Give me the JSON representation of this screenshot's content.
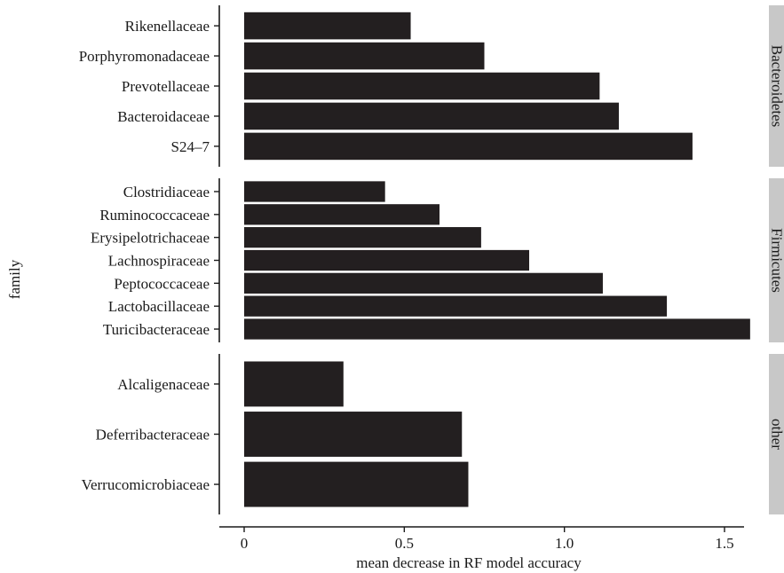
{
  "chart_data": {
    "type": "bar",
    "orientation": "horizontal",
    "xlabel": "mean decrease in RF model accuracy",
    "ylabel": "family",
    "xlim": [
      0,
      1.6
    ],
    "x_ticks": [
      "0",
      "0.5",
      "1.0",
      "1.5"
    ],
    "grid": false,
    "panels": [
      {
        "facet": "Bacteroidetes",
        "categories": [
          "Rikenellaceae",
          "Porphyromonadaceae",
          "Prevotellaceae",
          "Bacteroidaceae",
          "S24–7"
        ],
        "values": [
          0.52,
          0.75,
          1.11,
          1.17,
          1.4
        ]
      },
      {
        "facet": "Firmicutes",
        "categories": [
          "Clostridiaceae",
          "Ruminococcaceae",
          "Erysipelotrichaceae",
          "Lachnospiraceae",
          "Peptococcaceae",
          "Lactobacillaceae",
          "Turicibacteraceae"
        ],
        "values": [
          0.44,
          0.61,
          0.74,
          0.89,
          1.12,
          1.32,
          1.58
        ]
      },
      {
        "facet": "other",
        "categories": [
          "Alcaligenaceae",
          "Deferribacteraceae",
          "Verrucomicrobiaceae"
        ],
        "values": [
          0.31,
          0.68,
          0.7
        ]
      }
    ]
  },
  "colors": {
    "bar": "#231f20",
    "strip": "#c8c8c8",
    "axis": "#1a1a1a"
  }
}
